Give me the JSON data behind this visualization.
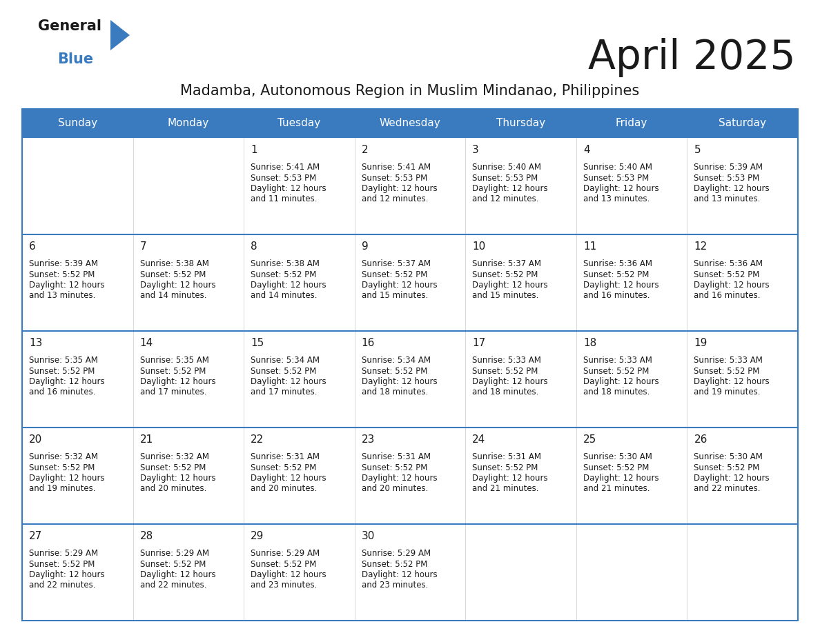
{
  "title": "April 2025",
  "subtitle": "Madamba, Autonomous Region in Muslim Mindanao, Philippines",
  "header_bg": "#3a7abf",
  "header_text": "#ffffff",
  "cell_bg": "#ffffff",
  "border_color": "#3a7abf",
  "divider_color": "#3a7abf",
  "text_color": "#222222",
  "days_of_week": [
    "Sunday",
    "Monday",
    "Tuesday",
    "Wednesday",
    "Thursday",
    "Friday",
    "Saturday"
  ],
  "weeks": [
    [
      {
        "day": "",
        "lines": []
      },
      {
        "day": "",
        "lines": []
      },
      {
        "day": "1",
        "lines": [
          "Sunrise: 5:41 AM",
          "Sunset: 5:53 PM",
          "Daylight: 12 hours",
          "and 11 minutes."
        ]
      },
      {
        "day": "2",
        "lines": [
          "Sunrise: 5:41 AM",
          "Sunset: 5:53 PM",
          "Daylight: 12 hours",
          "and 12 minutes."
        ]
      },
      {
        "day": "3",
        "lines": [
          "Sunrise: 5:40 AM",
          "Sunset: 5:53 PM",
          "Daylight: 12 hours",
          "and 12 minutes."
        ]
      },
      {
        "day": "4",
        "lines": [
          "Sunrise: 5:40 AM",
          "Sunset: 5:53 PM",
          "Daylight: 12 hours",
          "and 13 minutes."
        ]
      },
      {
        "day": "5",
        "lines": [
          "Sunrise: 5:39 AM",
          "Sunset: 5:53 PM",
          "Daylight: 12 hours",
          "and 13 minutes."
        ]
      }
    ],
    [
      {
        "day": "6",
        "lines": [
          "Sunrise: 5:39 AM",
          "Sunset: 5:52 PM",
          "Daylight: 12 hours",
          "and 13 minutes."
        ]
      },
      {
        "day": "7",
        "lines": [
          "Sunrise: 5:38 AM",
          "Sunset: 5:52 PM",
          "Daylight: 12 hours",
          "and 14 minutes."
        ]
      },
      {
        "day": "8",
        "lines": [
          "Sunrise: 5:38 AM",
          "Sunset: 5:52 PM",
          "Daylight: 12 hours",
          "and 14 minutes."
        ]
      },
      {
        "day": "9",
        "lines": [
          "Sunrise: 5:37 AM",
          "Sunset: 5:52 PM",
          "Daylight: 12 hours",
          "and 15 minutes."
        ]
      },
      {
        "day": "10",
        "lines": [
          "Sunrise: 5:37 AM",
          "Sunset: 5:52 PM",
          "Daylight: 12 hours",
          "and 15 minutes."
        ]
      },
      {
        "day": "11",
        "lines": [
          "Sunrise: 5:36 AM",
          "Sunset: 5:52 PM",
          "Daylight: 12 hours",
          "and 16 minutes."
        ]
      },
      {
        "day": "12",
        "lines": [
          "Sunrise: 5:36 AM",
          "Sunset: 5:52 PM",
          "Daylight: 12 hours",
          "and 16 minutes."
        ]
      }
    ],
    [
      {
        "day": "13",
        "lines": [
          "Sunrise: 5:35 AM",
          "Sunset: 5:52 PM",
          "Daylight: 12 hours",
          "and 16 minutes."
        ]
      },
      {
        "day": "14",
        "lines": [
          "Sunrise: 5:35 AM",
          "Sunset: 5:52 PM",
          "Daylight: 12 hours",
          "and 17 minutes."
        ]
      },
      {
        "day": "15",
        "lines": [
          "Sunrise: 5:34 AM",
          "Sunset: 5:52 PM",
          "Daylight: 12 hours",
          "and 17 minutes."
        ]
      },
      {
        "day": "16",
        "lines": [
          "Sunrise: 5:34 AM",
          "Sunset: 5:52 PM",
          "Daylight: 12 hours",
          "and 18 minutes."
        ]
      },
      {
        "day": "17",
        "lines": [
          "Sunrise: 5:33 AM",
          "Sunset: 5:52 PM",
          "Daylight: 12 hours",
          "and 18 minutes."
        ]
      },
      {
        "day": "18",
        "lines": [
          "Sunrise: 5:33 AM",
          "Sunset: 5:52 PM",
          "Daylight: 12 hours",
          "and 18 minutes."
        ]
      },
      {
        "day": "19",
        "lines": [
          "Sunrise: 5:33 AM",
          "Sunset: 5:52 PM",
          "Daylight: 12 hours",
          "and 19 minutes."
        ]
      }
    ],
    [
      {
        "day": "20",
        "lines": [
          "Sunrise: 5:32 AM",
          "Sunset: 5:52 PM",
          "Daylight: 12 hours",
          "and 19 minutes."
        ]
      },
      {
        "day": "21",
        "lines": [
          "Sunrise: 5:32 AM",
          "Sunset: 5:52 PM",
          "Daylight: 12 hours",
          "and 20 minutes."
        ]
      },
      {
        "day": "22",
        "lines": [
          "Sunrise: 5:31 AM",
          "Sunset: 5:52 PM",
          "Daylight: 12 hours",
          "and 20 minutes."
        ]
      },
      {
        "day": "23",
        "lines": [
          "Sunrise: 5:31 AM",
          "Sunset: 5:52 PM",
          "Daylight: 12 hours",
          "and 20 minutes."
        ]
      },
      {
        "day": "24",
        "lines": [
          "Sunrise: 5:31 AM",
          "Sunset: 5:52 PM",
          "Daylight: 12 hours",
          "and 21 minutes."
        ]
      },
      {
        "day": "25",
        "lines": [
          "Sunrise: 5:30 AM",
          "Sunset: 5:52 PM",
          "Daylight: 12 hours",
          "and 21 minutes."
        ]
      },
      {
        "day": "26",
        "lines": [
          "Sunrise: 5:30 AM",
          "Sunset: 5:52 PM",
          "Daylight: 12 hours",
          "and 22 minutes."
        ]
      }
    ],
    [
      {
        "day": "27",
        "lines": [
          "Sunrise: 5:29 AM",
          "Sunset: 5:52 PM",
          "Daylight: 12 hours",
          "and 22 minutes."
        ]
      },
      {
        "day": "28",
        "lines": [
          "Sunrise: 5:29 AM",
          "Sunset: 5:52 PM",
          "Daylight: 12 hours",
          "and 22 minutes."
        ]
      },
      {
        "day": "29",
        "lines": [
          "Sunrise: 5:29 AM",
          "Sunset: 5:52 PM",
          "Daylight: 12 hours",
          "and 23 minutes."
        ]
      },
      {
        "day": "30",
        "lines": [
          "Sunrise: 5:29 AM",
          "Sunset: 5:52 PM",
          "Daylight: 12 hours",
          "and 23 minutes."
        ]
      },
      {
        "day": "",
        "lines": []
      },
      {
        "day": "",
        "lines": []
      },
      {
        "day": "",
        "lines": []
      }
    ]
  ],
  "logo_triangle_color": "#3a7abf",
  "title_fontsize": 42,
  "subtitle_fontsize": 15,
  "header_fontsize": 11,
  "day_number_fontsize": 11,
  "cell_text_fontsize": 8.5
}
